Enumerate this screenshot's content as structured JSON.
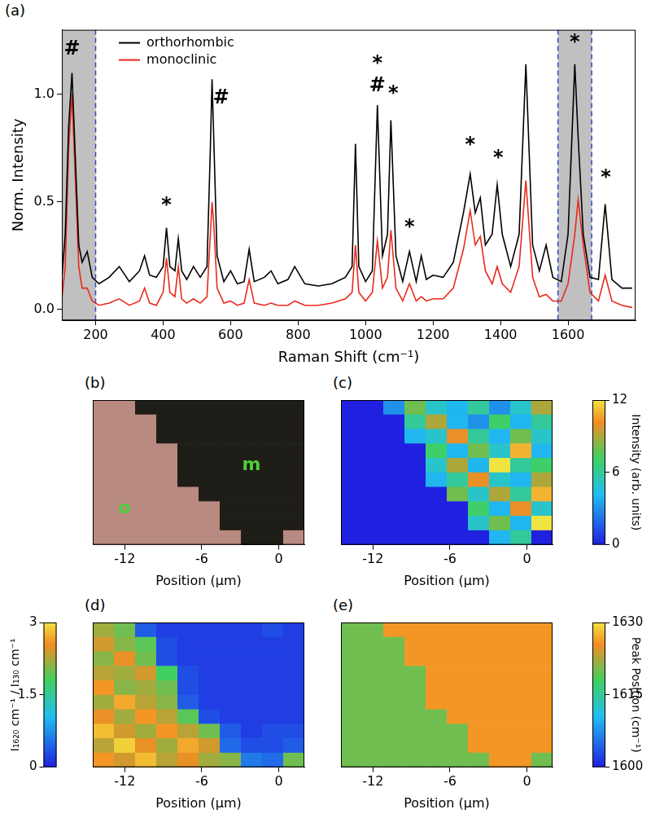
{
  "chart_data": [
    {
      "panel": "(a)",
      "type": "line",
      "x_label": "Raman Shift (cm⁻¹)",
      "y_label": "Norm. Intensity",
      "x": [
        100,
        110,
        120,
        130,
        140,
        150,
        160,
        175,
        190,
        210,
        240,
        270,
        300,
        330,
        345,
        360,
        380,
        400,
        410,
        420,
        435,
        445,
        455,
        470,
        490,
        510,
        530,
        540,
        545,
        550,
        560,
        580,
        600,
        620,
        640,
        655,
        670,
        700,
        720,
        740,
        770,
        790,
        820,
        860,
        900,
        940,
        960,
        970,
        980,
        1000,
        1020,
        1035,
        1050,
        1065,
        1075,
        1090,
        1110,
        1130,
        1150,
        1165,
        1180,
        1200,
        1230,
        1260,
        1290,
        1310,
        1325,
        1340,
        1355,
        1375,
        1390,
        1405,
        1430,
        1455,
        1475,
        1495,
        1515,
        1535,
        1555,
        1580,
        1600,
        1620,
        1630,
        1645,
        1665,
        1690,
        1710,
        1730,
        1760,
        1790
      ],
      "series": [
        {
          "name": "orthorhombic",
          "color": "#000000",
          "values": [
            0.15,
            0.35,
            0.85,
            1.1,
            0.7,
            0.3,
            0.22,
            0.27,
            0.15,
            0.12,
            0.15,
            0.2,
            0.13,
            0.18,
            0.25,
            0.16,
            0.15,
            0.2,
            0.38,
            0.2,
            0.18,
            0.33,
            0.18,
            0.14,
            0.2,
            0.15,
            0.2,
            0.75,
            1.07,
            0.8,
            0.25,
            0.13,
            0.18,
            0.12,
            0.13,
            0.28,
            0.13,
            0.15,
            0.18,
            0.12,
            0.14,
            0.2,
            0.12,
            0.11,
            0.12,
            0.15,
            0.2,
            0.77,
            0.2,
            0.13,
            0.18,
            0.95,
            0.25,
            0.35,
            0.88,
            0.25,
            0.13,
            0.27,
            0.13,
            0.25,
            0.14,
            0.16,
            0.15,
            0.22,
            0.45,
            0.63,
            0.45,
            0.52,
            0.3,
            0.35,
            0.58,
            0.35,
            0.2,
            0.35,
            1.14,
            0.3,
            0.18,
            0.3,
            0.15,
            0.13,
            0.35,
            1.14,
            0.8,
            0.35,
            0.15,
            0.14,
            0.49,
            0.14,
            0.1,
            0.1
          ]
        },
        {
          "name": "monoclinic",
          "color": "#e8291c",
          "values": [
            0.05,
            0.2,
            0.75,
            1.0,
            0.6,
            0.2,
            0.1,
            0.1,
            0.04,
            0.02,
            0.03,
            0.05,
            0.02,
            0.04,
            0.1,
            0.03,
            0.02,
            0.08,
            0.24,
            0.08,
            0.06,
            0.2,
            0.05,
            0.03,
            0.05,
            0.03,
            0.06,
            0.35,
            0.5,
            0.4,
            0.1,
            0.03,
            0.04,
            0.02,
            0.03,
            0.14,
            0.03,
            0.02,
            0.03,
            0.02,
            0.02,
            0.04,
            0.02,
            0.02,
            0.03,
            0.05,
            0.08,
            0.3,
            0.08,
            0.04,
            0.08,
            0.32,
            0.1,
            0.15,
            0.37,
            0.1,
            0.04,
            0.12,
            0.04,
            0.06,
            0.04,
            0.05,
            0.05,
            0.1,
            0.28,
            0.46,
            0.3,
            0.34,
            0.18,
            0.12,
            0.2,
            0.12,
            0.08,
            0.2,
            0.6,
            0.15,
            0.06,
            0.07,
            0.04,
            0.04,
            0.12,
            0.35,
            0.51,
            0.3,
            0.08,
            0.04,
            0.16,
            0.04,
            0.02,
            0.01
          ]
        }
      ],
      "xlim": [
        100,
        1800
      ],
      "xticks": [
        200,
        400,
        600,
        800,
        1000,
        1200,
        1400,
        1600
      ],
      "ylim": [
        -0.05,
        1.3
      ],
      "yticks": [
        {
          "value": 0,
          "label": "0.0"
        },
        0.5,
        {
          "value": 1,
          "label": "1.0"
        }
      ],
      "grid": false,
      "legend": "upper left",
      "shaded_ranges": [
        [
          100,
          200
        ],
        [
          1570,
          1670
        ]
      ],
      "annotations": [
        {
          "text": "#",
          "x": 130,
          "y": 1.21
        },
        {
          "text": "#",
          "x": 572,
          "y": 0.98
        },
        {
          "text": "*",
          "x": 410,
          "y": 0.48
        },
        {
          "text": "*",
          "x": 1035,
          "y": 1.14
        },
        {
          "text": "#",
          "x": 1035,
          "y": 1.04
        },
        {
          "text": "*",
          "x": 1082,
          "y": 1.0
        },
        {
          "text": "*",
          "x": 1130,
          "y": 0.38
        },
        {
          "text": "*",
          "x": 1310,
          "y": 0.76
        },
        {
          "text": "*",
          "x": 1393,
          "y": 0.7
        },
        {
          "text": "*",
          "x": 1620,
          "y": 1.24
        },
        {
          "text": "*",
          "x": 1712,
          "y": 0.61
        }
      ]
    },
    {
      "panel": "(b)",
      "type": "image",
      "x_label": "Position (μm)",
      "xlim": [
        -14.5,
        2
      ],
      "xticks": [
        -12,
        -6,
        0
      ],
      "tick_labels": "x",
      "regions": [
        [
          "o",
          "o",
          "m",
          "m",
          "m",
          "m",
          "m",
          "m",
          "m",
          "m"
        ],
        [
          "o",
          "o",
          "o",
          "m",
          "m",
          "m",
          "m",
          "m",
          "m",
          "m"
        ],
        [
          "o",
          "o",
          "o",
          "m",
          "m",
          "m",
          "m",
          "m",
          "m",
          "m"
        ],
        [
          "o",
          "o",
          "o",
          "o",
          "m",
          "m",
          "m",
          "m",
          "m",
          "m"
        ],
        [
          "o",
          "o",
          "o",
          "o",
          "m",
          "m",
          "m",
          "m",
          "m",
          "m"
        ],
        [
          "o",
          "o",
          "o",
          "o",
          "m",
          "m",
          "m",
          "m",
          "m",
          "m"
        ],
        [
          "o",
          "o",
          "o",
          "o",
          "o",
          "m",
          "m",
          "m",
          "m",
          "m"
        ],
        [
          "o",
          "o",
          "o",
          "o",
          "o",
          "o",
          "m",
          "m",
          "m",
          "m"
        ],
        [
          "o",
          "o",
          "o",
          "o",
          "o",
          "o",
          "m",
          "m",
          "m",
          "m"
        ],
        [
          "o",
          "o",
          "o",
          "o",
          "o",
          "o",
          "o",
          "m",
          "m",
          "o"
        ]
      ],
      "annotations": [
        {
          "text": "o",
          "row": 7,
          "col": 1
        },
        {
          "text": "m",
          "row": 4,
          "col": 7
        }
      ]
    },
    {
      "panel": "(c)",
      "type": "heatmap",
      "x_label": "Position (μm)",
      "xlim": [
        -14.5,
        2
      ],
      "xticks": [
        -12,
        -6,
        0
      ],
      "tick_labels": "x",
      "cells": [
        [
          0,
          0,
          3,
          8,
          5,
          4,
          6,
          3,
          5,
          9
        ],
        [
          0,
          0,
          0,
          6,
          9,
          4,
          3,
          7,
          4,
          6
        ],
        [
          0,
          0,
          0,
          4,
          5,
          10,
          6,
          4,
          8,
          5
        ],
        [
          0,
          0,
          0,
          0,
          7,
          4,
          8,
          5,
          11,
          4
        ],
        [
          0,
          0,
          0,
          0,
          5,
          9,
          4,
          12,
          6,
          7
        ],
        [
          0,
          0,
          0,
          0,
          4,
          6,
          10,
          5,
          4,
          9
        ],
        [
          0,
          0,
          0,
          0,
          0,
          8,
          5,
          9,
          6,
          11
        ],
        [
          0,
          0,
          0,
          0,
          0,
          0,
          7,
          4,
          10,
          5
        ],
        [
          0,
          0,
          0,
          0,
          0,
          0,
          5,
          8,
          4,
          12
        ],
        [
          0,
          0,
          0,
          0,
          0,
          0,
          0,
          4,
          6,
          0
        ]
      ],
      "colorbar": {
        "label": "Intensity (arb. units)",
        "lim": [
          0,
          12
        ],
        "ticks": [
          0,
          6,
          12
        ]
      }
    },
    {
      "panel": "(d)",
      "type": "heatmap",
      "x_label": "Position (μm)",
      "xlim": [
        -14.5,
        2
      ],
      "xticks": [
        -12,
        -6,
        0
      ],
      "tick_labels": "x",
      "cells": [
        [
          2.2,
          2.0,
          0.4,
          0.2,
          0.2,
          0.2,
          0.2,
          0.2,
          0.3,
          0.2
        ],
        [
          2.4,
          2.1,
          1.9,
          0.3,
          0.2,
          0.2,
          0.2,
          0.2,
          0.2,
          0.2
        ],
        [
          2.1,
          2.5,
          2.0,
          0.3,
          0.2,
          0.2,
          0.2,
          0.2,
          0.2,
          0.2
        ],
        [
          2.3,
          2.2,
          2.4,
          1.8,
          0.3,
          0.2,
          0.2,
          0.2,
          0.2,
          0.2
        ],
        [
          2.6,
          2.1,
          2.2,
          2.0,
          0.3,
          0.2,
          0.2,
          0.2,
          0.2,
          0.2
        ],
        [
          2.2,
          2.7,
          2.3,
          2.1,
          0.4,
          0.2,
          0.2,
          0.2,
          0.2,
          0.2
        ],
        [
          2.5,
          2.2,
          2.6,
          2.3,
          1.9,
          0.3,
          0.2,
          0.2,
          0.2,
          0.2
        ],
        [
          2.8,
          2.4,
          2.2,
          2.6,
          2.3,
          2.0,
          0.4,
          0.2,
          0.3,
          0.3
        ],
        [
          2.3,
          2.9,
          2.5,
          2.2,
          2.7,
          2.4,
          0.5,
          0.3,
          0.3,
          0.4
        ],
        [
          2.6,
          2.4,
          2.8,
          2.3,
          2.5,
          2.2,
          2.1,
          0.6,
          0.5,
          2.0
        ]
      ],
      "colorbar": {
        "label": "I₁₆₂₀ cm⁻¹ / I₁₃₀ cm⁻¹",
        "lim": [
          0,
          3
        ],
        "ticks": [
          0,
          1.5,
          3
        ]
      }
    },
    {
      "panel": "(e)",
      "type": "heatmap",
      "x_label": "Position (μm)",
      "xlim": [
        -14.5,
        2
      ],
      "xticks": [
        -12,
        -6,
        0
      ],
      "tick_labels": "x",
      "cells": [
        [
          1620,
          1620,
          1626,
          1626,
          1626,
          1626,
          1626,
          1626,
          1626,
          1626
        ],
        [
          1620,
          1620,
          1620,
          1626,
          1626,
          1626,
          1626,
          1626,
          1626,
          1626
        ],
        [
          1620,
          1620,
          1620,
          1626,
          1626,
          1626,
          1626,
          1626,
          1626,
          1626
        ],
        [
          1620,
          1620,
          1620,
          1620,
          1626,
          1626,
          1626,
          1626,
          1626,
          1626
        ],
        [
          1620,
          1620,
          1620,
          1620,
          1626,
          1626,
          1626,
          1626,
          1626,
          1626
        ],
        [
          1620,
          1620,
          1620,
          1620,
          1626,
          1626,
          1626,
          1626,
          1626,
          1626
        ],
        [
          1620,
          1620,
          1620,
          1620,
          1620,
          1626,
          1626,
          1626,
          1626,
          1626
        ],
        [
          1620,
          1620,
          1620,
          1620,
          1620,
          1620,
          1626,
          1626,
          1626,
          1626
        ],
        [
          1620,
          1620,
          1620,
          1620,
          1620,
          1620,
          1626,
          1626,
          1626,
          1626
        ],
        [
          1620,
          1620,
          1620,
          1620,
          1620,
          1620,
          1620,
          1626,
          1626,
          1620
        ]
      ],
      "colorbar": {
        "label": "Peak Position (cm⁻¹)",
        "lim": [
          1600,
          1630
        ],
        "ticks": [
          1600,
          1615,
          1630
        ]
      }
    }
  ]
}
